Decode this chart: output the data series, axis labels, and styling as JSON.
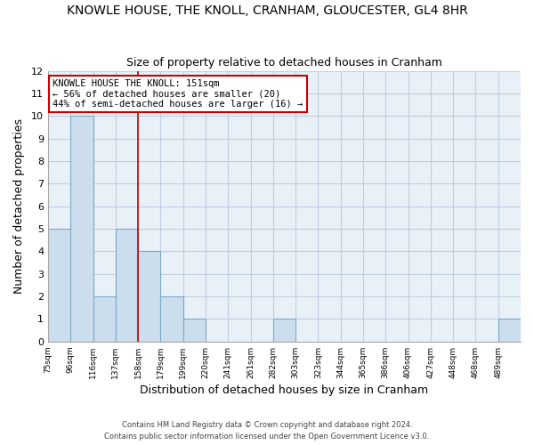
{
  "title": "KNOWLE HOUSE, THE KNOLL, CRANHAM, GLOUCESTER, GL4 8HR",
  "subtitle": "Size of property relative to detached houses in Cranham",
  "xlabel": "Distribution of detached houses by size in Cranham",
  "ylabel": "Number of detached properties",
  "bin_labels": [
    "75sqm",
    "96sqm",
    "116sqm",
    "137sqm",
    "158sqm",
    "179sqm",
    "199sqm",
    "220sqm",
    "241sqm",
    "261sqm",
    "282sqm",
    "303sqm",
    "323sqm",
    "344sqm",
    "365sqm",
    "386sqm",
    "406sqm",
    "427sqm",
    "448sqm",
    "468sqm",
    "489sqm"
  ],
  "bar_values": [
    5,
    10,
    2,
    5,
    4,
    2,
    1,
    0,
    0,
    0,
    1,
    0,
    0,
    0,
    0,
    0,
    0,
    0,
    0,
    0,
    1
  ],
  "bar_color": "#ccdded",
  "bar_edge_color": "#7aaac8",
  "plot_bg_color": "#e8f0f8",
  "grid_color": "#c0cfe0",
  "vline_color": "#cc0000",
  "vline_x_index": 4,
  "annotation_title": "KNOWLE HOUSE THE KNOLL: 151sqm",
  "annotation_line1": "← 56% of detached houses are smaller (20)",
  "annotation_line2": "44% of semi-detached houses are larger (16) →",
  "annotation_box_color": "#ffffff",
  "annotation_box_edge_color": "#cc0000",
  "ylim": [
    0,
    12
  ],
  "yticks": [
    0,
    1,
    2,
    3,
    4,
    5,
    6,
    7,
    8,
    9,
    10,
    11,
    12
  ],
  "footnote1": "Contains HM Land Registry data © Crown copyright and database right 2024.",
  "footnote2": "Contains public sector information licensed under the Open Government Licence v3.0.",
  "bg_color": "#ffffff",
  "figsize": [
    6.0,
    5.0
  ],
  "dpi": 100
}
